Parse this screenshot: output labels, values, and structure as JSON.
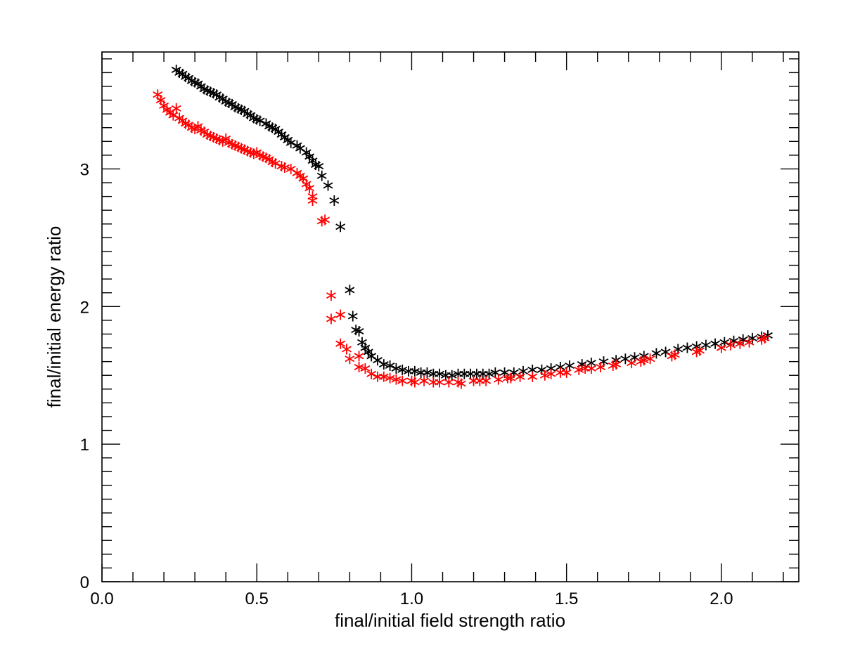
{
  "chart_data": {
    "type": "scatter",
    "title": "",
    "xlabel": "final/initial field strength ratio",
    "ylabel": "final/initial energy ratio",
    "xlim": [
      0.0,
      2.25
    ],
    "ylim": [
      0,
      3.85
    ],
    "x_ticks": [
      0.0,
      0.5,
      1.0,
      1.5,
      2.0
    ],
    "x_tick_labels": [
      "0.0",
      "0.5",
      "1.0",
      "1.5",
      "2.0"
    ],
    "y_ticks": [
      0,
      1,
      2,
      3
    ],
    "y_tick_labels": [
      "0",
      "1",
      "2",
      "3"
    ],
    "grid": false,
    "marker": "asterisk",
    "series": [
      {
        "name": "black",
        "color": "#000000",
        "points": [
          [
            0.24,
            3.72
          ],
          [
            0.25,
            3.7
          ],
          [
            0.26,
            3.69
          ],
          [
            0.27,
            3.67
          ],
          [
            0.28,
            3.66
          ],
          [
            0.29,
            3.64
          ],
          [
            0.3,
            3.63
          ],
          [
            0.31,
            3.62
          ],
          [
            0.32,
            3.6
          ],
          [
            0.33,
            3.58
          ],
          [
            0.34,
            3.57
          ],
          [
            0.35,
            3.56
          ],
          [
            0.36,
            3.55
          ],
          [
            0.37,
            3.54
          ],
          [
            0.38,
            3.52
          ],
          [
            0.39,
            3.51
          ],
          [
            0.4,
            3.49
          ],
          [
            0.41,
            3.48
          ],
          [
            0.42,
            3.47
          ],
          [
            0.43,
            3.45
          ],
          [
            0.44,
            3.44
          ],
          [
            0.45,
            3.43
          ],
          [
            0.46,
            3.42
          ],
          [
            0.47,
            3.4
          ],
          [
            0.48,
            3.39
          ],
          [
            0.49,
            3.37
          ],
          [
            0.5,
            3.36
          ],
          [
            0.51,
            3.35
          ],
          [
            0.53,
            3.33
          ],
          [
            0.54,
            3.31
          ],
          [
            0.55,
            3.3
          ],
          [
            0.56,
            3.29
          ],
          [
            0.57,
            3.27
          ],
          [
            0.58,
            3.25
          ],
          [
            0.59,
            3.23
          ],
          [
            0.6,
            3.21
          ],
          [
            0.61,
            3.19
          ],
          [
            0.63,
            3.17
          ],
          [
            0.64,
            3.15
          ],
          [
            0.66,
            3.12
          ],
          [
            0.67,
            3.09
          ],
          [
            0.68,
            3.06
          ],
          [
            0.69,
            3.03
          ],
          [
            0.7,
            3.02
          ],
          [
            0.71,
            2.95
          ],
          [
            0.73,
            2.88
          ],
          [
            0.75,
            2.77
          ],
          [
            0.77,
            2.58
          ],
          [
            0.8,
            2.12
          ],
          [
            0.81,
            1.93
          ],
          [
            0.82,
            1.83
          ],
          [
            0.83,
            1.82
          ],
          [
            0.84,
            1.74
          ],
          [
            0.85,
            1.7
          ],
          [
            0.86,
            1.67
          ],
          [
            0.87,
            1.64
          ],
          [
            0.89,
            1.61
          ],
          [
            0.91,
            1.58
          ],
          [
            0.93,
            1.57
          ],
          [
            0.95,
            1.55
          ],
          [
            0.97,
            1.54
          ],
          [
            0.99,
            1.53
          ],
          [
            1.01,
            1.53
          ],
          [
            1.03,
            1.52
          ],
          [
            1.05,
            1.52
          ],
          [
            1.07,
            1.51
          ],
          [
            1.09,
            1.51
          ],
          [
            1.11,
            1.5
          ],
          [
            1.13,
            1.5
          ],
          [
            1.15,
            1.51
          ],
          [
            1.17,
            1.51
          ],
          [
            1.19,
            1.51
          ],
          [
            1.21,
            1.51
          ],
          [
            1.23,
            1.51
          ],
          [
            1.25,
            1.51
          ],
          [
            1.27,
            1.52
          ],
          [
            1.3,
            1.52
          ],
          [
            1.33,
            1.52
          ],
          [
            1.36,
            1.53
          ],
          [
            1.39,
            1.54
          ],
          [
            1.42,
            1.54
          ],
          [
            1.45,
            1.55
          ],
          [
            1.48,
            1.56
          ],
          [
            1.51,
            1.57
          ],
          [
            1.55,
            1.58
          ],
          [
            1.58,
            1.59
          ],
          [
            1.62,
            1.6
          ],
          [
            1.66,
            1.61
          ],
          [
            1.69,
            1.62
          ],
          [
            1.72,
            1.63
          ],
          [
            1.75,
            1.64
          ],
          [
            1.79,
            1.66
          ],
          [
            1.82,
            1.67
          ],
          [
            1.86,
            1.69
          ],
          [
            1.89,
            1.7
          ],
          [
            1.92,
            1.71
          ],
          [
            1.95,
            1.72
          ],
          [
            1.98,
            1.73
          ],
          [
            2.01,
            1.74
          ],
          [
            2.04,
            1.75
          ],
          [
            2.07,
            1.76
          ],
          [
            2.1,
            1.77
          ],
          [
            2.13,
            1.78
          ],
          [
            2.15,
            1.79
          ]
        ]
      },
      {
        "name": "red",
        "color": "#ff0000",
        "points": [
          [
            0.18,
            3.54
          ],
          [
            0.19,
            3.5
          ],
          [
            0.2,
            3.46
          ],
          [
            0.21,
            3.43
          ],
          [
            0.22,
            3.41
          ],
          [
            0.23,
            3.39
          ],
          [
            0.24,
            3.44
          ],
          [
            0.25,
            3.37
          ],
          [
            0.26,
            3.35
          ],
          [
            0.27,
            3.33
          ],
          [
            0.28,
            3.32
          ],
          [
            0.29,
            3.3
          ],
          [
            0.3,
            3.29
          ],
          [
            0.31,
            3.31
          ],
          [
            0.32,
            3.28
          ],
          [
            0.33,
            3.27
          ],
          [
            0.34,
            3.25
          ],
          [
            0.35,
            3.24
          ],
          [
            0.36,
            3.23
          ],
          [
            0.37,
            3.22
          ],
          [
            0.38,
            3.21
          ],
          [
            0.39,
            3.2
          ],
          [
            0.4,
            3.22
          ],
          [
            0.41,
            3.19
          ],
          [
            0.42,
            3.18
          ],
          [
            0.43,
            3.17
          ],
          [
            0.44,
            3.16
          ],
          [
            0.45,
            3.15
          ],
          [
            0.46,
            3.14
          ],
          [
            0.47,
            3.13
          ],
          [
            0.48,
            3.12
          ],
          [
            0.49,
            3.11
          ],
          [
            0.5,
            3.12
          ],
          [
            0.51,
            3.1
          ],
          [
            0.52,
            3.09
          ],
          [
            0.53,
            3.08
          ],
          [
            0.54,
            3.07
          ],
          [
            0.55,
            3.05
          ],
          [
            0.56,
            3.04
          ],
          [
            0.58,
            3.02
          ],
          [
            0.59,
            3.01
          ],
          [
            0.61,
            3.0
          ],
          [
            0.63,
            2.97
          ],
          [
            0.64,
            2.95
          ],
          [
            0.65,
            2.93
          ],
          [
            0.66,
            2.89
          ],
          [
            0.67,
            2.86
          ],
          [
            0.68,
            2.8
          ],
          [
            0.68,
            2.77
          ],
          [
            0.71,
            2.62
          ],
          [
            0.72,
            2.63
          ],
          [
            0.74,
            2.08
          ],
          [
            0.74,
            1.91
          ],
          [
            0.77,
            1.94
          ],
          [
            0.77,
            1.73
          ],
          [
            0.79,
            1.69
          ],
          [
            0.8,
            1.62
          ],
          [
            0.83,
            1.64
          ],
          [
            0.83,
            1.56
          ],
          [
            0.85,
            1.55
          ],
          [
            0.87,
            1.51
          ],
          [
            0.89,
            1.49
          ],
          [
            0.91,
            1.49
          ],
          [
            0.93,
            1.48
          ],
          [
            0.95,
            1.47
          ],
          [
            0.97,
            1.46
          ],
          [
            1.0,
            1.46
          ],
          [
            1.01,
            1.45
          ],
          [
            1.04,
            1.46
          ],
          [
            1.07,
            1.45
          ],
          [
            1.09,
            1.45
          ],
          [
            1.12,
            1.45
          ],
          [
            1.15,
            1.45
          ],
          [
            1.16,
            1.44
          ],
          [
            1.2,
            1.46
          ],
          [
            1.22,
            1.46
          ],
          [
            1.24,
            1.46
          ],
          [
            1.28,
            1.47
          ],
          [
            1.31,
            1.48
          ],
          [
            1.32,
            1.48
          ],
          [
            1.35,
            1.49
          ],
          [
            1.39,
            1.49
          ],
          [
            1.43,
            1.5
          ],
          [
            1.45,
            1.51
          ],
          [
            1.48,
            1.52
          ],
          [
            1.5,
            1.52
          ],
          [
            1.54,
            1.54
          ],
          [
            1.56,
            1.55
          ],
          [
            1.58,
            1.55
          ],
          [
            1.61,
            1.56
          ],
          [
            1.65,
            1.57
          ],
          [
            1.66,
            1.58
          ],
          [
            1.71,
            1.59
          ],
          [
            1.74,
            1.6
          ],
          [
            1.75,
            1.61
          ],
          [
            1.77,
            1.62
          ],
          [
            1.84,
            1.64
          ],
          [
            1.85,
            1.65
          ],
          [
            1.92,
            1.67
          ],
          [
            1.93,
            1.68
          ],
          [
            2.0,
            1.7
          ],
          [
            2.03,
            1.72
          ],
          [
            2.06,
            1.73
          ],
          [
            2.09,
            1.74
          ],
          [
            2.13,
            1.76
          ],
          [
            2.14,
            1.77
          ]
        ]
      }
    ]
  }
}
